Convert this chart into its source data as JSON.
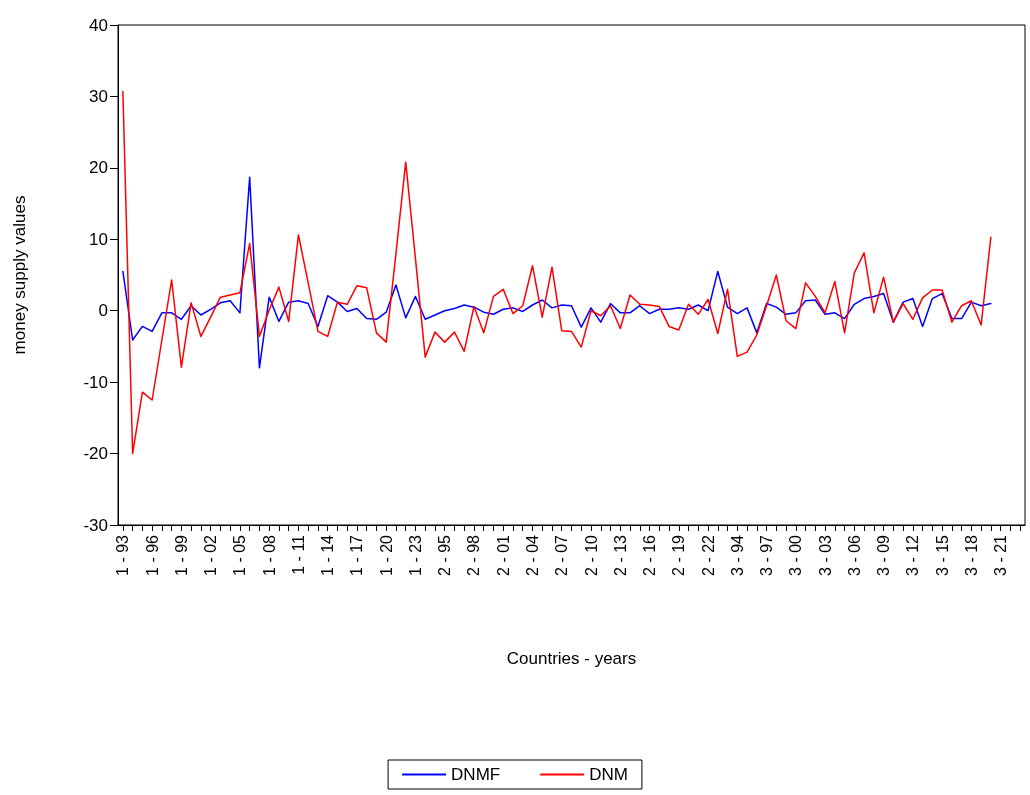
{
  "chart_data": {
    "type": "line",
    "xlabel": "Countries - years",
    "ylabel": "money supply values",
    "categories": [
      "1 - 93",
      null,
      null,
      "1 - 96",
      null,
      null,
      "1 - 99",
      null,
      null,
      "1 - 02",
      null,
      null,
      "1 - 05",
      null,
      null,
      "1 - 08",
      null,
      null,
      "1 - 11",
      null,
      null,
      "1 - 14",
      null,
      null,
      "1 - 17",
      null,
      null,
      "1 - 20",
      null,
      null,
      "1 - 23",
      null,
      null,
      "2 - 95",
      null,
      null,
      "2 - 98",
      null,
      null,
      "2 - 01",
      null,
      null,
      "2 - 04",
      null,
      null,
      "2 - 07",
      null,
      null,
      "2 - 10",
      null,
      null,
      "2 - 13",
      null,
      null,
      "2 - 16",
      null,
      null,
      "2 - 19",
      null,
      null,
      "2 - 22",
      null,
      null,
      "3 - 94",
      null,
      null,
      "3 - 97",
      null,
      null,
      "3 - 00",
      null,
      null,
      "3 - 03",
      null,
      null,
      "3 - 06",
      null,
      null,
      "3 - 09",
      null,
      null,
      "3 - 12",
      null,
      null,
      "3 - 15",
      null,
      null,
      "3 - 18",
      null,
      null,
      "3 - 21",
      null,
      null
    ],
    "series": [
      {
        "name": "DNMF",
        "color": "#0000ff",
        "values": [
          5.5,
          -4.1,
          -2.2,
          -2.9,
          -0.3,
          -0.3,
          -1.2,
          0.7,
          -0.6,
          0.2,
          1.1,
          1.4,
          -0.3,
          18.7,
          -8.0,
          1.9,
          -1.5,
          1.2,
          1.4,
          1.0,
          -2.2,
          2.1,
          1.2,
          -0.1,
          0.3,
          -1.1,
          -1.2,
          -0.2,
          3.6,
          -1.0,
          2.0,
          -1.2,
          -0.6,
          0.0,
          0.3,
          0.8,
          0.5,
          -0.2,
          -0.5,
          0.2,
          0.4,
          -0.1,
          0.8,
          1.5,
          0.4,
          0.8,
          0.7,
          -2.3,
          0.4,
          -1.6,
          1.0,
          -0.3,
          -0.3,
          0.7,
          -0.4,
          0.2,
          0.2,
          0.4,
          0.2,
          0.8,
          0.0,
          5.5,
          0.5,
          -0.4,
          0.4,
          -3.1,
          1.0,
          0.5,
          -0.5,
          -0.3,
          1.4,
          1.5,
          -0.5,
          -0.3,
          -1.1,
          0.9,
          1.7,
          2.0,
          2.4,
          -1.6,
          1.2,
          1.7,
          -2.2,
          1.7,
          2.4,
          -1.1,
          -1.1,
          1.2,
          0.7,
          1.0,
          null,
          null,
          null
        ]
      },
      {
        "name": "DNM",
        "color": "#ff0000",
        "values": [
          30.7,
          -20.0,
          -11.4,
          -12.5,
          -4.1,
          4.3,
          -7.9,
          1.1,
          -3.6,
          -0.9,
          1.9,
          2.2,
          2.5,
          9.4,
          -3.6,
          0.1,
          3.3,
          -1.5,
          10.6,
          3.9,
          -2.9,
          -3.6,
          1.2,
          0.9,
          3.5,
          3.2,
          -3.1,
          -4.4,
          8.0,
          20.8,
          7.3,
          -6.5,
          -3.0,
          -4.4,
          -3.0,
          -5.7,
          0.6,
          -3.1,
          2.0,
          3.0,
          -0.4,
          0.7,
          6.3,
          -0.9,
          6.1,
          -2.8,
          -2.9,
          -5.1,
          0.0,
          -0.7,
          0.7,
          -2.5,
          2.2,
          0.9,
          0.8,
          0.6,
          -2.2,
          -2.7,
          0.9,
          -0.5,
          1.6,
          -3.2,
          3.0,
          -6.4,
          -5.8,
          -3.4,
          0.7,
          5.0,
          -1.4,
          -2.5,
          3.9,
          2.0,
          -0.3,
          4.1,
          -3.1,
          5.3,
          8.1,
          -0.3,
          4.7,
          -1.6,
          1.0,
          -1.2,
          1.8,
          2.9,
          2.9,
          -1.6,
          0.7,
          1.4,
          -2.0,
          10.3,
          null,
          null,
          null
        ]
      }
    ],
    "ylim": [
      -30,
      40
    ],
    "yticks": [
      -30,
      -20,
      -10,
      0,
      10,
      20,
      30,
      40
    ],
    "grid": false,
    "legend": "bottom",
    "marker": "none",
    "line_style": "solid"
  }
}
